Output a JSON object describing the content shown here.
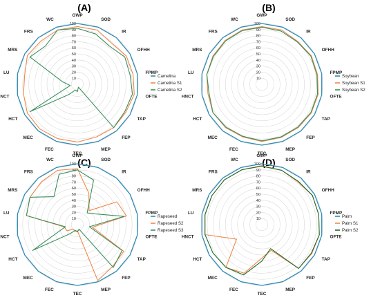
{
  "figure": {
    "background": "#ffffff"
  },
  "chart_data": [
    {
      "type": "radar",
      "title": "(A)",
      "categories": [
        "GWP",
        "SOD",
        "IR",
        "OFHH",
        "FPMP",
        "OFTE",
        "TAP",
        "FEP",
        "MEP",
        "TEC",
        "FEC",
        "MEC",
        "HCT",
        "HNCT",
        "LU",
        "MRS",
        "FRS",
        "WC"
      ],
      "rlim": [
        0,
        100
      ],
      "rticks": [
        10,
        20,
        30,
        40,
        50,
        60,
        70,
        80,
        90,
        100
      ],
      "legend_position": "right",
      "series": [
        {
          "name": "Camelina",
          "color": "#2e8bb5",
          "values": [
            100,
            100,
            100,
            100,
            100,
            100,
            100,
            100,
            100,
            100,
            100,
            100,
            100,
            100,
            100,
            100,
            100,
            100
          ]
        },
        {
          "name": "Camelina S1",
          "color": "#f0874a",
          "values": [
            95,
            95,
            88,
            93,
            93,
            95,
            92,
            93,
            92,
            95,
            95,
            96,
            95,
            90,
            88,
            95,
            93,
            95
          ]
        },
        {
          "name": "Camelina S2",
          "color": "#3a8f5c",
          "values": [
            92,
            88,
            82,
            90,
            88,
            92,
            90,
            93,
            5,
            12,
            10,
            22,
            90,
            12,
            25,
            90,
            82,
            95
          ]
        }
      ]
    },
    {
      "type": "radar",
      "title": "(B)",
      "categories": [
        "GWP",
        "SOD",
        "IR",
        "OFHH",
        "FPMP",
        "OFTE",
        "TAP",
        "FEP",
        "MEP",
        "TEC",
        "FEC",
        "MEC",
        "HCT",
        "HNCT",
        "LU",
        "MRS",
        "FRS",
        "WC"
      ],
      "rlim": [
        0,
        100
      ],
      "rticks": [
        10,
        20,
        30,
        40,
        50,
        60,
        70,
        80,
        90,
        100
      ],
      "legend_position": "right",
      "series": [
        {
          "name": "Soybean",
          "color": "#2e8bb5",
          "values": [
            100,
            100,
            100,
            100,
            100,
            100,
            100,
            100,
            100,
            100,
            100,
            100,
            100,
            100,
            100,
            100,
            100,
            100
          ]
        },
        {
          "name": "Soybean S1",
          "color": "#f0874a",
          "values": [
            95,
            95,
            92,
            94,
            93,
            94,
            94,
            93,
            93,
            94,
            92,
            93,
            93,
            90,
            92,
            93,
            94,
            95
          ]
        },
        {
          "name": "Soybean S2",
          "color": "#3a8f5c",
          "values": [
            94,
            93,
            91,
            93,
            92,
            93,
            93,
            92,
            92,
            93,
            91,
            92,
            93,
            88,
            92,
            92,
            93,
            94
          ]
        }
      ]
    },
    {
      "type": "radar",
      "title": "(C)",
      "categories": [
        "GWP",
        "SOD",
        "IR",
        "OFHH",
        "FPMP",
        "OFTE",
        "TAP",
        "FEP",
        "MEP",
        "TEC",
        "FEC",
        "MEC",
        "HCT",
        "HNCT",
        "LU",
        "MRS",
        "FRS",
        "WC"
      ],
      "rlim": [
        0,
        100
      ],
      "rticks": [
        10,
        20,
        30,
        40,
        50,
        60,
        70,
        80,
        90,
        100
      ],
      "legend_position": "right",
      "series": [
        {
          "name": "Rapeseed",
          "color": "#2e8bb5",
          "values": [
            100,
            100,
            100,
            100,
            100,
            100,
            100,
            100,
            100,
            100,
            100,
            100,
            100,
            100,
            100,
            100,
            100,
            100
          ]
        },
        {
          "name": "Rapeseed S2",
          "color": "#f0874a",
          "values": [
            92,
            55,
            30,
            75,
            82,
            25,
            88,
            90,
            98,
            10,
            12,
            10,
            20,
            22,
            85,
            90,
            92,
            95
          ]
        },
        {
          "name": "Rapeseed S3",
          "color": "#3a8f5c",
          "values": [
            90,
            78,
            25,
            35,
            78,
            20,
            85,
            92,
            8,
            12,
            10,
            20,
            85,
            20,
            85,
            90,
            60,
            88
          ]
        }
      ]
    },
    {
      "type": "radar",
      "title": "(D)",
      "categories": [
        "GWP",
        "SOD",
        "IR",
        "OFHH",
        "FPMP",
        "OFTE",
        "TAP",
        "FEP",
        "MEP",
        "TEC",
        "FEC",
        "MEC",
        "HCT",
        "HNCT",
        "LU",
        "MRS",
        "FRS",
        "WC"
      ],
      "rlim": [
        0,
        100
      ],
      "rticks": [
        10,
        20,
        30,
        40,
        50,
        60,
        70,
        80,
        90,
        100
      ],
      "legend_position": "right",
      "series": [
        {
          "name": "Palm",
          "color": "#2e8bb5",
          "values": [
            100,
            100,
            100,
            100,
            100,
            100,
            100,
            100,
            100,
            100,
            100,
            100,
            100,
            100,
            100,
            100,
            100,
            100
          ]
        },
        {
          "name": "Palm S1",
          "color": "#f0874a",
          "values": [
            97,
            95,
            92,
            96,
            95,
            96,
            95,
            94,
            45,
            55,
            85,
            92,
            48,
            95,
            95,
            95,
            96,
            96
          ]
        },
        {
          "name": "Palm S2",
          "color": "#1a6b2a",
          "values": [
            96,
            95,
            93,
            96,
            95,
            96,
            94,
            94,
            42,
            60,
            88,
            92,
            93,
            95,
            95,
            95,
            96,
            96
          ]
        }
      ]
    }
  ]
}
